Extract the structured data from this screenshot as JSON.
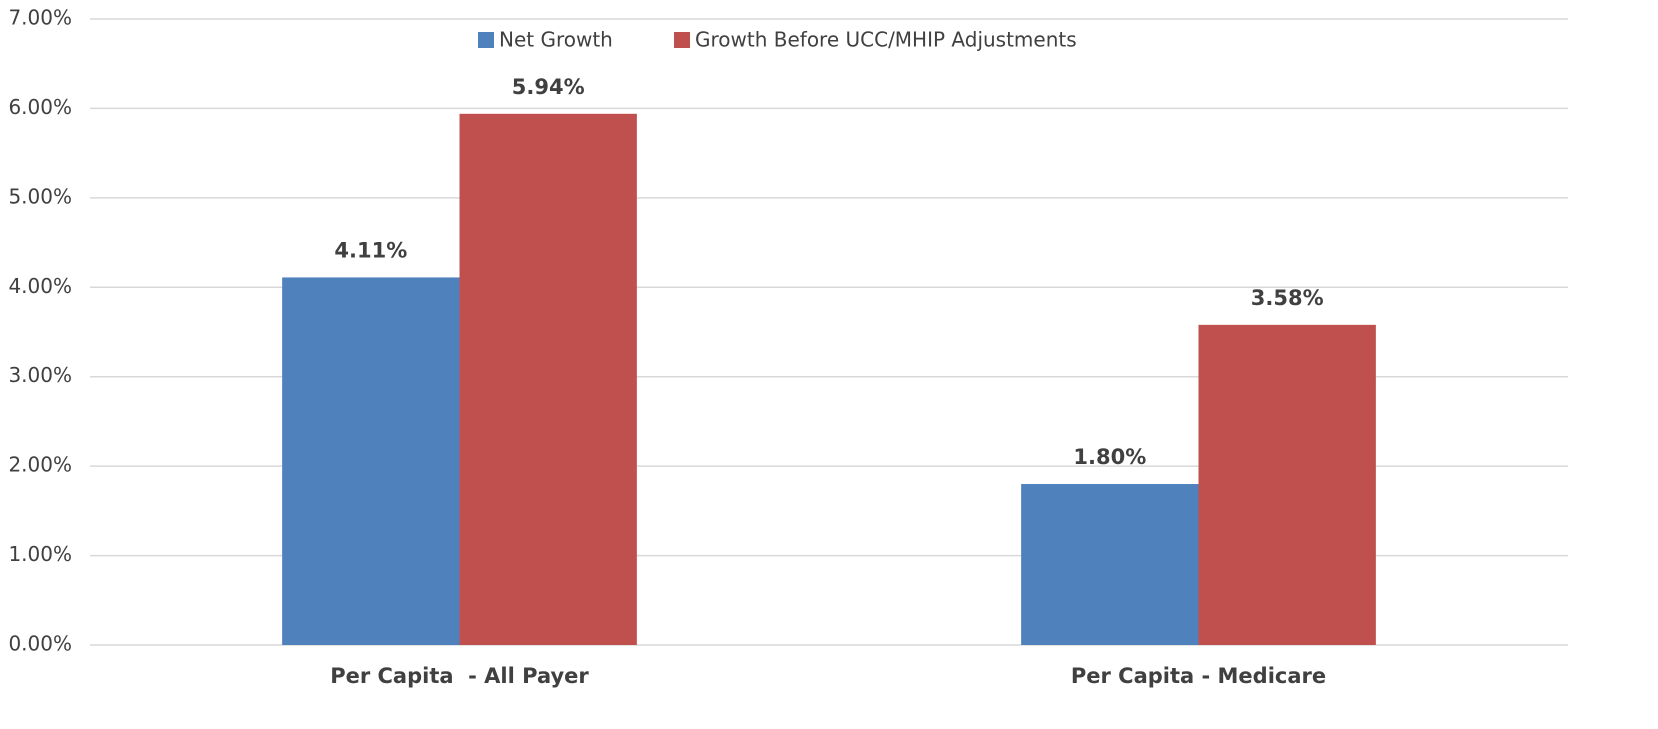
{
  "chart_data": {
    "type": "bar",
    "categories": [
      "Per Capita  - All Payer",
      "Per Capita - Medicare"
    ],
    "series": [
      {
        "name": "Net Growth",
        "color": "#4f81bd",
        "values": [
          4.11,
          1.8
        ],
        "value_labels": [
          "4.11%",
          "1.80%"
        ]
      },
      {
        "name": "Growth Before UCC/MHIP Adjustments",
        "color": "#c0504d",
        "values": [
          5.94,
          3.58
        ],
        "value_labels": [
          "5.94%",
          "3.58%"
        ]
      }
    ],
    "ylim": [
      0,
      7
    ],
    "yticks": [
      {
        "value": 0,
        "label": "0.00%"
      },
      {
        "value": 1,
        "label": "1.00%"
      },
      {
        "value": 2,
        "label": "2.00%"
      },
      {
        "value": 3,
        "label": "3.00%"
      },
      {
        "value": 4,
        "label": "4.00%"
      },
      {
        "value": 5,
        "label": "5.00%"
      },
      {
        "value": 6,
        "label": "6.00%"
      },
      {
        "value": 7,
        "label": "7.00%"
      }
    ],
    "grid": true,
    "legend": "top"
  }
}
